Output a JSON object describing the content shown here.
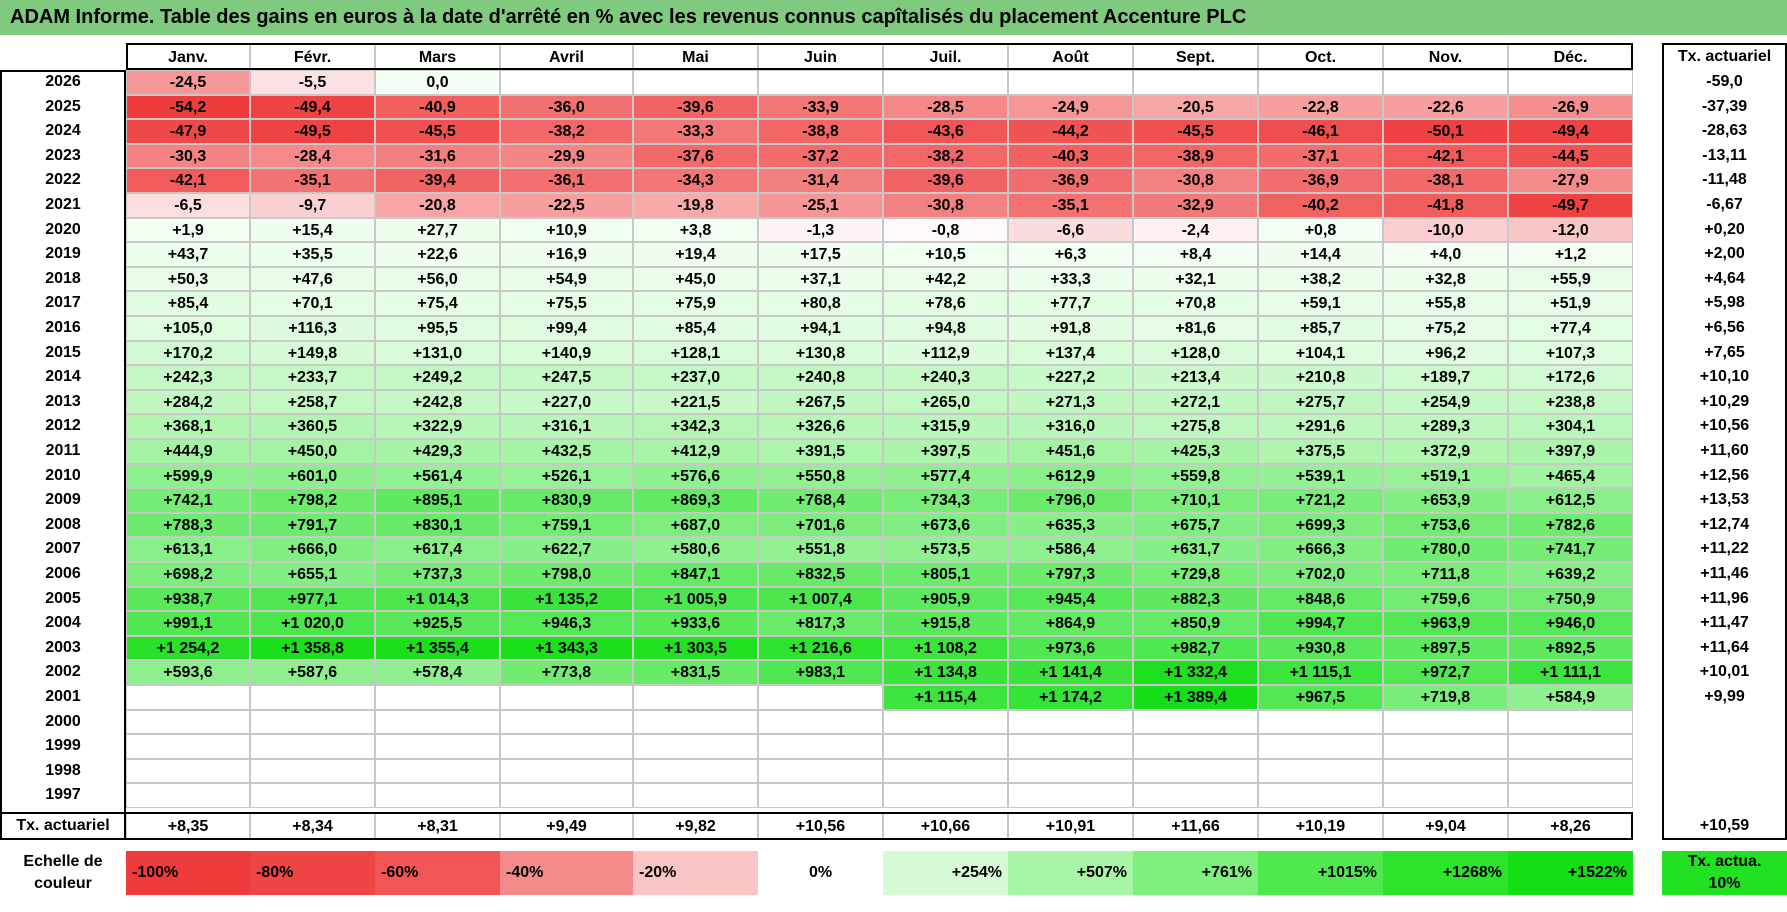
{
  "title": "ADAM Informe. Table des gains en euros à la date d'arrêté en % avec les revenus connus capîtalisés du placement Accenture PLC",
  "chart_data": {
    "type": "heatmap",
    "title": "ADAM Informe. Table des gains en euros à la date d'arrêté en % avec les revenus connus capîtalisés du placement Accenture PLC",
    "months": [
      "Janv.",
      "Févr.",
      "Mars",
      "Avril",
      "Mai",
      "Juin",
      "Juil.",
      "Août",
      "Sept.",
      "Oct.",
      "Nov.",
      "Déc."
    ],
    "rate_column_label": "Tx. actuariel",
    "rows": [
      {
        "year": "2026",
        "values": [
          "-24,5",
          "-5,5",
          "0,0",
          "",
          "",
          "",
          "",
          "",
          "",
          "",
          "",
          ""
        ],
        "rate": "-59,0"
      },
      {
        "year": "2025",
        "values": [
          "-54,2",
          "-49,4",
          "-40,9",
          "-36,0",
          "-39,6",
          "-33,9",
          "-28,5",
          "-24,9",
          "-20,5",
          "-22,8",
          "-22,6",
          "-26,9"
        ],
        "rate": "-37,39"
      },
      {
        "year": "2024",
        "values": [
          "-47,9",
          "-49,5",
          "-45,5",
          "-38,2",
          "-33,3",
          "-38,8",
          "-43,6",
          "-44,2",
          "-45,5",
          "-46,1",
          "-50,1",
          "-49,4"
        ],
        "rate": "-28,63"
      },
      {
        "year": "2023",
        "values": [
          "-30,3",
          "-28,4",
          "-31,6",
          "-29,9",
          "-37,6",
          "-37,2",
          "-38,2",
          "-40,3",
          "-38,9",
          "-37,1",
          "-42,1",
          "-44,5"
        ],
        "rate": "-13,11"
      },
      {
        "year": "2022",
        "values": [
          "-42,1",
          "-35,1",
          "-39,4",
          "-36,1",
          "-34,3",
          "-31,4",
          "-39,6",
          "-36,9",
          "-30,8",
          "-36,9",
          "-38,1",
          "-27,9"
        ],
        "rate": "-11,48"
      },
      {
        "year": "2021",
        "values": [
          "-6,5",
          "-9,7",
          "-20,8",
          "-22,5",
          "-19,8",
          "-25,1",
          "-30,8",
          "-35,1",
          "-32,9",
          "-40,2",
          "-41,8",
          "-49,7"
        ],
        "rate": "-6,67"
      },
      {
        "year": "2020",
        "values": [
          "+1,9",
          "+15,4",
          "+27,7",
          "+10,9",
          "+3,8",
          "-1,3",
          "-0,8",
          "-6,6",
          "-2,4",
          "+0,8",
          "-10,0",
          "-12,0"
        ],
        "rate": "+0,20"
      },
      {
        "year": "2019",
        "values": [
          "+43,7",
          "+35,5",
          "+22,6",
          "+16,9",
          "+19,4",
          "+17,5",
          "+10,5",
          "+6,3",
          "+8,4",
          "+14,4",
          "+4,0",
          "+1,2"
        ],
        "rate": "+2,00"
      },
      {
        "year": "2018",
        "values": [
          "+50,3",
          "+47,6",
          "+56,0",
          "+54,9",
          "+45,0",
          "+37,1",
          "+42,2",
          "+33,3",
          "+32,1",
          "+38,2",
          "+32,8",
          "+55,9"
        ],
        "rate": "+4,64"
      },
      {
        "year": "2017",
        "values": [
          "+85,4",
          "+70,1",
          "+75,4",
          "+75,5",
          "+75,9",
          "+80,8",
          "+78,6",
          "+77,7",
          "+70,8",
          "+59,1",
          "+55,8",
          "+51,9"
        ],
        "rate": "+5,98"
      },
      {
        "year": "2016",
        "values": [
          "+105,0",
          "+116,3",
          "+95,5",
          "+99,4",
          "+85,4",
          "+94,1",
          "+94,8",
          "+91,8",
          "+81,6",
          "+85,7",
          "+75,2",
          "+77,4"
        ],
        "rate": "+6,56"
      },
      {
        "year": "2015",
        "values": [
          "+170,2",
          "+149,8",
          "+131,0",
          "+140,9",
          "+128,1",
          "+130,8",
          "+112,9",
          "+137,4",
          "+128,0",
          "+104,1",
          "+96,2",
          "+107,3"
        ],
        "rate": "+7,65"
      },
      {
        "year": "2014",
        "values": [
          "+242,3",
          "+233,7",
          "+249,2",
          "+247,5",
          "+237,0",
          "+240,8",
          "+240,3",
          "+227,2",
          "+213,4",
          "+210,8",
          "+189,7",
          "+172,6"
        ],
        "rate": "+10,10"
      },
      {
        "year": "2013",
        "values": [
          "+284,2",
          "+258,7",
          "+242,8",
          "+227,0",
          "+221,5",
          "+267,5",
          "+265,0",
          "+271,3",
          "+272,1",
          "+275,7",
          "+254,9",
          "+238,8"
        ],
        "rate": "+10,29"
      },
      {
        "year": "2012",
        "values": [
          "+368,1",
          "+360,5",
          "+322,9",
          "+316,1",
          "+342,3",
          "+326,6",
          "+315,9",
          "+316,0",
          "+275,8",
          "+291,6",
          "+289,3",
          "+304,1"
        ],
        "rate": "+10,56"
      },
      {
        "year": "2011",
        "values": [
          "+444,9",
          "+450,0",
          "+429,3",
          "+432,5",
          "+412,9",
          "+391,5",
          "+397,5",
          "+451,6",
          "+425,3",
          "+375,5",
          "+372,9",
          "+397,9"
        ],
        "rate": "+11,60"
      },
      {
        "year": "2010",
        "values": [
          "+599,9",
          "+601,0",
          "+561,4",
          "+526,1",
          "+576,6",
          "+550,8",
          "+577,4",
          "+612,9",
          "+559,8",
          "+539,1",
          "+519,1",
          "+465,4"
        ],
        "rate": "+12,56"
      },
      {
        "year": "2009",
        "values": [
          "+742,1",
          "+798,2",
          "+895,1",
          "+830,9",
          "+869,3",
          "+768,4",
          "+734,3",
          "+796,0",
          "+710,1",
          "+721,2",
          "+653,9",
          "+612,5"
        ],
        "rate": "+13,53"
      },
      {
        "year": "2008",
        "values": [
          "+788,3",
          "+791,7",
          "+830,1",
          "+759,1",
          "+687,0",
          "+701,6",
          "+673,6",
          "+635,3",
          "+675,7",
          "+699,3",
          "+753,6",
          "+782,6"
        ],
        "rate": "+12,74"
      },
      {
        "year": "2007",
        "values": [
          "+613,1",
          "+666,0",
          "+617,4",
          "+622,7",
          "+580,6",
          "+551,8",
          "+573,5",
          "+586,4",
          "+631,7",
          "+666,3",
          "+780,0",
          "+741,7"
        ],
        "rate": "+11,22"
      },
      {
        "year": "2006",
        "values": [
          "+698,2",
          "+655,1",
          "+737,3",
          "+798,0",
          "+847,1",
          "+832,5",
          "+805,1",
          "+797,3",
          "+729,8",
          "+702,0",
          "+711,8",
          "+639,2"
        ],
        "rate": "+11,46"
      },
      {
        "year": "2005",
        "values": [
          "+938,7",
          "+977,1",
          "+1 014,3",
          "+1 135,2",
          "+1 005,9",
          "+1 007,4",
          "+905,9",
          "+945,4",
          "+882,3",
          "+848,6",
          "+759,6",
          "+750,9"
        ],
        "rate": "+11,96"
      },
      {
        "year": "2004",
        "values": [
          "+991,1",
          "+1 020,0",
          "+925,5",
          "+946,3",
          "+933,6",
          "+817,3",
          "+915,8",
          "+864,9",
          "+850,9",
          "+994,7",
          "+963,9",
          "+946,0"
        ],
        "rate": "+11,47"
      },
      {
        "year": "2003",
        "values": [
          "+1 254,2",
          "+1 358,8",
          "+1 355,4",
          "+1 343,3",
          "+1 303,5",
          "+1 216,6",
          "+1 108,2",
          "+973,6",
          "+982,7",
          "+930,8",
          "+897,5",
          "+892,5"
        ],
        "rate": "+11,64"
      },
      {
        "year": "2002",
        "values": [
          "+593,6",
          "+587,6",
          "+578,4",
          "+773,8",
          "+831,5",
          "+983,1",
          "+1 134,8",
          "+1 141,4",
          "+1 332,4",
          "+1 115,1",
          "+972,7",
          "+1 111,1"
        ],
        "rate": "+10,01"
      },
      {
        "year": "2001",
        "values": [
          "",
          "",
          "",
          "",
          "",
          "",
          "+1 115,4",
          "+1 174,2",
          "+1 389,4",
          "+967,5",
          "+719,8",
          "+584,9"
        ],
        "rate": "+9,99"
      },
      {
        "year": "2000",
        "values": [
          "",
          "",
          "",
          "",
          "",
          "",
          "",
          "",
          "",
          "",
          "",
          ""
        ],
        "rate": ""
      },
      {
        "year": "1999",
        "values": [
          "",
          "",
          "",
          "",
          "",
          "",
          "",
          "",
          "",
          "",
          "",
          ""
        ],
        "rate": ""
      },
      {
        "year": "1998",
        "values": [
          "",
          "",
          "",
          "",
          "",
          "",
          "",
          "",
          "",
          "",
          "",
          ""
        ],
        "rate": ""
      },
      {
        "year": "1997",
        "values": [
          "",
          "",
          "",
          "",
          "",
          "",
          "",
          "",
          "",
          "",
          "",
          ""
        ],
        "rate": ""
      }
    ],
    "footer": {
      "label": "Tx. actuariel",
      "values": [
        "+8,35",
        "+8,34",
        "+8,31",
        "+9,49",
        "+9,82",
        "+10,56",
        "+10,66",
        "+10,91",
        "+11,66",
        "+10,19",
        "+9,04",
        "+8,26"
      ],
      "rate": "+10,59"
    },
    "color_scale": {
      "label": "Echelle de couleur",
      "steps": [
        {
          "text": "-100%",
          "color": "#ee3b3b"
        },
        {
          "text": "-80%",
          "color": "#ef4545"
        },
        {
          "text": "-60%",
          "color": "#f25555"
        },
        {
          "text": "-40%",
          "color": "#f58a8a"
        },
        {
          "text": "-20%",
          "color": "#fbc5c5"
        },
        {
          "text": "0%",
          "color": "#ffffff"
        },
        {
          "text": "+254%",
          "color": "#d6fad6"
        },
        {
          "text": "+507%",
          "color": "#a8f5a8"
        },
        {
          "text": "+761%",
          "color": "#7ef07e"
        },
        {
          "text": "+1015%",
          "color": "#4fe84f"
        },
        {
          "text": "+1268%",
          "color": "#2be42b"
        },
        {
          "text": "+1522%",
          "color": "#14de14"
        }
      ],
      "rate_label": "Tx. actua. 10%",
      "rate_color": "#22e022"
    }
  }
}
